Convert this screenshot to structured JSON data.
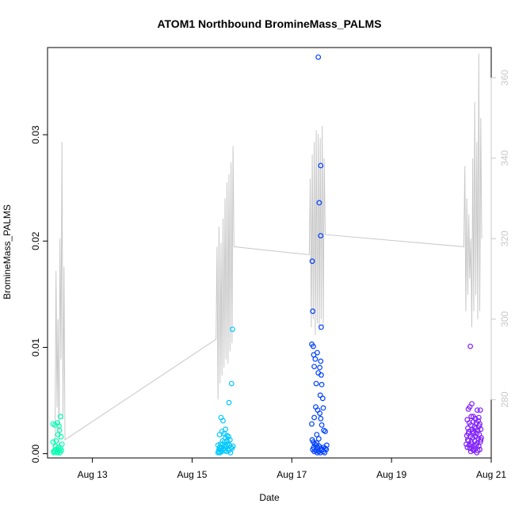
{
  "chart_data": {
    "type": "scatter",
    "title": "ATOM1 Northbound BromineMass_PALMS",
    "xlabel": "Date",
    "ylabel": "BromineMass_PALMS",
    "x_axis": {
      "unit": "days (August 2016)",
      "range": [
        12.1,
        21.0
      ],
      "ticks": [
        13,
        15,
        17,
        19,
        21
      ],
      "tick_labels": [
        "Aug 13",
        "Aug 15",
        "Aug 17",
        "Aug 19",
        "Aug 21"
      ]
    },
    "y_axis": {
      "range": [
        -0.0004,
        0.0382
      ],
      "ticks": [
        0.0,
        0.01,
        0.02,
        0.03
      ],
      "tick_labels": [
        "0.00",
        "0.01",
        "0.02",
        "0.03"
      ]
    },
    "y2_axis": {
      "range": [
        265.5,
        367.5
      ],
      "ticks": [
        280,
        300,
        320,
        340,
        360
      ],
      "tick_labels": [
        "280",
        "300",
        "320",
        "340",
        "360"
      ],
      "color": "#c8c8c8"
    },
    "grid": false,
    "legend": "none",
    "series": [
      {
        "color": "#00ffb0",
        "points": [
          [
            12.21,
            0.0028
          ],
          [
            12.25,
            0.0027
          ],
          [
            12.3,
            0.0029
          ],
          [
            12.33,
            0.0026
          ],
          [
            12.36,
            0.0035
          ],
          [
            12.21,
            0.0011
          ],
          [
            12.27,
            0.0012
          ],
          [
            12.24,
            0.0003
          ],
          [
            12.29,
            0.0002
          ],
          [
            12.32,
            0.0006
          ],
          [
            12.35,
            0.0001
          ],
          [
            12.38,
            0.0003
          ],
          [
            12.23,
            0.0001
          ],
          [
            12.31,
            0.0018
          ],
          [
            12.37,
            0.0016
          ],
          [
            12.34,
            0.0022
          ],
          [
            12.26,
            0.0007
          ],
          [
            12.39,
            0.0009
          ],
          [
            12.28,
            0.0004
          ],
          [
            12.36,
            0.0005
          ],
          [
            12.22,
            0.0002
          ],
          [
            12.3,
            0.0001
          ],
          [
            12.33,
            0.0003
          ]
        ]
      },
      {
        "color": "#00c8ff",
        "points": [
          [
            15.81,
            0.0117
          ],
          [
            15.79,
            0.0066
          ],
          [
            15.74,
            0.0048
          ],
          [
            15.58,
            0.0034
          ],
          [
            15.62,
            0.0031
          ],
          [
            15.55,
            0.0018
          ],
          [
            15.6,
            0.0021
          ],
          [
            15.64,
            0.0019
          ],
          [
            15.67,
            0.0023
          ],
          [
            15.7,
            0.0017
          ],
          [
            15.73,
            0.0016
          ],
          [
            15.76,
            0.0013
          ],
          [
            15.52,
            0.0008
          ],
          [
            15.54,
            0.0004
          ],
          [
            15.57,
            0.0009
          ],
          [
            15.59,
            0.0006
          ],
          [
            15.61,
            0.0012
          ],
          [
            15.63,
            0.0005
          ],
          [
            15.65,
            0.0011
          ],
          [
            15.68,
            0.0007
          ],
          [
            15.71,
            0.0009
          ],
          [
            15.72,
            0.0004
          ],
          [
            15.75,
            0.0008
          ],
          [
            15.78,
            0.0006
          ],
          [
            15.8,
            0.0005
          ],
          [
            15.82,
            0.0007
          ],
          [
            15.53,
            0.0002
          ],
          [
            15.56,
            0.0001
          ],
          [
            15.58,
            0.0003
          ],
          [
            15.6,
            0.0002
          ],
          [
            15.62,
            0.0004
          ],
          [
            15.66,
            0.0003
          ],
          [
            15.69,
            0.0002
          ],
          [
            15.74,
            0.0003
          ],
          [
            15.77,
            0.0001
          ],
          [
            15.52,
            0.0001
          ],
          [
            15.57,
            0.0005
          ],
          [
            15.64,
            0.0007
          ],
          [
            15.7,
            0.0012
          ],
          [
            15.67,
            0.0015
          ],
          [
            15.61,
            0.0009
          ],
          [
            15.55,
            0.0006
          ]
        ]
      },
      {
        "color": "#0040ff",
        "points": [
          [
            17.53,
            0.0373
          ],
          [
            17.58,
            0.0271
          ],
          [
            17.55,
            0.0236
          ],
          [
            17.58,
            0.0205
          ],
          [
            17.41,
            0.0181
          ],
          [
            17.42,
            0.0134
          ],
          [
            17.59,
            0.0119
          ],
          [
            17.4,
            0.0103
          ],
          [
            17.43,
            0.0101
          ],
          [
            17.44,
            0.0093
          ],
          [
            17.51,
            0.0095
          ],
          [
            17.47,
            0.0089
          ],
          [
            17.58,
            0.0087
          ],
          [
            17.45,
            0.0082
          ],
          [
            17.56,
            0.0081
          ],
          [
            17.53,
            0.0076
          ],
          [
            17.59,
            0.0074
          ],
          [
            17.49,
            0.0066
          ],
          [
            17.6,
            0.0065
          ],
          [
            17.57,
            0.0055
          ],
          [
            17.62,
            0.0052
          ],
          [
            17.48,
            0.0044
          ],
          [
            17.52,
            0.0041
          ],
          [
            17.56,
            0.0038
          ],
          [
            17.63,
            0.0043
          ],
          [
            17.45,
            0.0034
          ],
          [
            17.58,
            0.0033
          ],
          [
            17.6,
            0.0027
          ],
          [
            17.4,
            0.0028
          ],
          [
            17.64,
            0.0022
          ],
          [
            17.67,
            0.0021
          ],
          [
            17.5,
            0.0018
          ],
          [
            17.54,
            0.0014
          ],
          [
            17.41,
            0.0013
          ],
          [
            17.43,
            0.0011
          ],
          [
            17.46,
            0.0009
          ],
          [
            17.49,
            0.0008
          ],
          [
            17.52,
            0.0006
          ],
          [
            17.55,
            0.0007
          ],
          [
            17.58,
            0.0005
          ],
          [
            17.61,
            0.0004
          ],
          [
            17.64,
            0.0006
          ],
          [
            17.67,
            0.0005
          ],
          [
            17.7,
            0.0008
          ],
          [
            17.42,
            0.0004
          ],
          [
            17.45,
            0.0002
          ],
          [
            17.48,
            0.0003
          ],
          [
            17.51,
            0.0001
          ],
          [
            17.54,
            0.0002
          ],
          [
            17.57,
            0.0001
          ],
          [
            17.6,
            0.0003
          ],
          [
            17.63,
            0.0002
          ],
          [
            17.66,
            0.0001
          ],
          [
            17.69,
            0.0004
          ],
          [
            17.44,
            0.0006
          ],
          [
            17.5,
            0.001
          ]
        ]
      },
      {
        "color": "#8020ff",
        "points": [
          [
            20.58,
            0.0101
          ],
          [
            20.61,
            0.0047
          ],
          [
            20.57,
            0.0044
          ],
          [
            20.54,
            0.0042
          ],
          [
            20.72,
            0.0041
          ],
          [
            20.78,
            0.0041
          ],
          [
            20.6,
            0.0035
          ],
          [
            20.64,
            0.0035
          ],
          [
            20.68,
            0.0033
          ],
          [
            20.75,
            0.0034
          ],
          [
            20.52,
            0.0032
          ],
          [
            20.56,
            0.0029
          ],
          [
            20.7,
            0.0029
          ],
          [
            20.77,
            0.0028
          ],
          [
            20.59,
            0.0027
          ],
          [
            20.66,
            0.0025
          ],
          [
            20.53,
            0.0024
          ],
          [
            20.62,
            0.0023
          ],
          [
            20.73,
            0.0022
          ],
          [
            20.79,
            0.0023
          ],
          [
            20.55,
            0.0021
          ],
          [
            20.65,
            0.002
          ],
          [
            20.71,
            0.0019
          ],
          [
            20.76,
            0.0018
          ],
          [
            20.51,
            0.0017
          ],
          [
            20.58,
            0.0016
          ],
          [
            20.63,
            0.0015
          ],
          [
            20.69,
            0.0016
          ],
          [
            20.74,
            0.0014
          ],
          [
            20.8,
            0.0015
          ],
          [
            20.54,
            0.0012
          ],
          [
            20.6,
            0.0011
          ],
          [
            20.67,
            0.0012
          ],
          [
            20.72,
            0.001
          ],
          [
            20.78,
            0.0011
          ],
          [
            20.5,
            0.0009
          ],
          [
            20.56,
            0.0008
          ],
          [
            20.61,
            0.0009
          ],
          [
            20.66,
            0.0007
          ],
          [
            20.7,
            0.0008
          ],
          [
            20.75,
            0.0007
          ],
          [
            20.52,
            0.0006
          ],
          [
            20.57,
            0.0005
          ],
          [
            20.63,
            0.0004
          ],
          [
            20.68,
            0.0005
          ],
          [
            20.73,
            0.0003
          ],
          [
            20.77,
            0.0004
          ],
          [
            20.59,
            0.0002
          ],
          [
            20.65,
            0.0003
          ],
          [
            20.71,
            0.0001
          ],
          [
            20.54,
            0.0019
          ],
          [
            20.62,
            0.0021
          ],
          [
            20.69,
            0.0024
          ],
          [
            20.76,
            0.0026
          ],
          [
            20.53,
            0.0013
          ],
          [
            20.79,
            0.0013
          ],
          [
            20.64,
            0.003
          ],
          [
            20.74,
            0.0031
          ]
        ]
      }
    ],
    "secondary_line": {
      "color": "#c8c8c8",
      "points": [
        [
          12.25,
          268
        ],
        [
          12.27,
          312
        ],
        [
          12.29,
          278
        ],
        [
          12.31,
          300
        ],
        [
          12.33,
          268
        ],
        [
          12.35,
          320
        ],
        [
          12.37,
          290
        ],
        [
          12.39,
          344
        ],
        [
          12.41,
          275
        ],
        [
          12.43,
          313
        ],
        [
          12.45,
          270
        ],
        [
          15.48,
          295
        ],
        [
          15.5,
          318
        ],
        [
          15.52,
          280
        ],
        [
          15.54,
          323
        ],
        [
          15.56,
          284
        ],
        [
          15.58,
          319
        ],
        [
          15.6,
          286
        ],
        [
          15.62,
          325
        ],
        [
          15.64,
          288
        ],
        [
          15.66,
          330
        ],
        [
          15.68,
          290
        ],
        [
          15.7,
          334
        ],
        [
          15.72,
          289
        ],
        [
          15.74,
          336
        ],
        [
          15.76,
          292
        ],
        [
          15.78,
          339
        ],
        [
          15.8,
          294
        ],
        [
          15.82,
          343
        ],
        [
          15.84,
          318
        ],
        [
          17.35,
          316
        ],
        [
          17.37,
          335
        ],
        [
          17.39,
          298
        ],
        [
          17.41,
          341
        ],
        [
          17.43,
          300
        ],
        [
          17.45,
          344
        ],
        [
          17.47,
          296
        ],
        [
          17.49,
          347
        ],
        [
          17.51,
          299
        ],
        [
          17.53,
          346
        ],
        [
          17.55,
          297
        ],
        [
          17.57,
          345
        ],
        [
          17.59,
          300
        ],
        [
          17.61,
          348
        ],
        [
          17.63,
          298
        ],
        [
          17.65,
          340
        ],
        [
          17.67,
          321
        ],
        [
          20.45,
          318
        ],
        [
          20.47,
          338
        ],
        [
          20.49,
          302
        ],
        [
          20.51,
          330
        ],
        [
          20.53,
          306
        ],
        [
          20.55,
          326
        ],
        [
          20.57,
          310
        ],
        [
          20.59,
          320
        ],
        [
          20.61,
          298
        ],
        [
          20.63,
          340
        ],
        [
          20.65,
          302
        ],
        [
          20.67,
          354
        ],
        [
          20.69,
          306
        ],
        [
          20.71,
          344
        ],
        [
          20.73,
          300
        ],
        [
          20.75,
          366
        ],
        [
          20.77,
          302
        ],
        [
          20.79,
          350
        ],
        [
          20.81,
          320
        ]
      ]
    }
  }
}
